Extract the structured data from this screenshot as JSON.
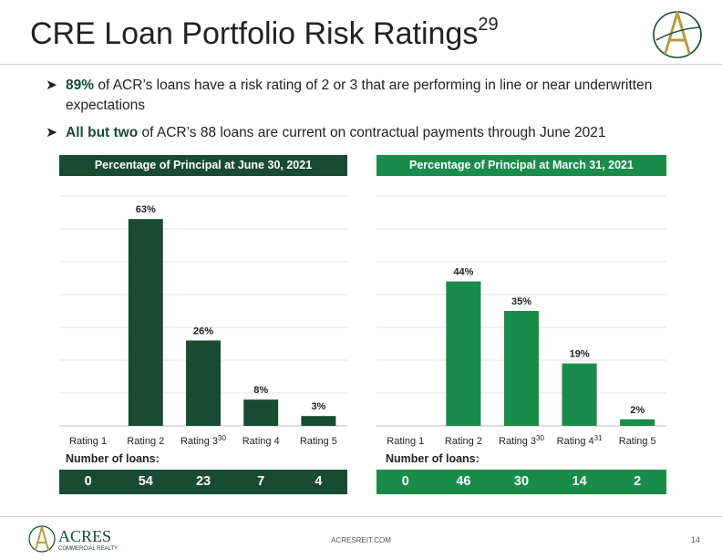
{
  "title": "CRE Loan Portfolio Risk Ratings",
  "title_sup": "29",
  "bullets": [
    {
      "highlight": "89%",
      "text": " of ACR’s loans have a risk rating of 2 or 3 that are performing in line or near underwritten expectations"
    },
    {
      "highlight": "All but two",
      "text": " of ACR’s 88 loans are current on contractual payments through June 2021"
    }
  ],
  "chart_data": [
    {
      "type": "bar",
      "title": "Percentage of Principal at June 30, 2021",
      "categories": [
        "Rating 1",
        "Rating 2",
        "Rating 3",
        "Rating 4",
        "Rating 5"
      ],
      "category_sups": [
        "",
        "",
        "30",
        "",
        ""
      ],
      "values": [
        0,
        63,
        26,
        8,
        3
      ],
      "labels": [
        "",
        "63%",
        "26%",
        "8%",
        "3%"
      ],
      "ylim": [
        0,
        70
      ],
      "grid": true,
      "color": "#184a34",
      "loans_label": "Number of loans:",
      "loans": [
        "0",
        "54",
        "23",
        "7",
        "4"
      ]
    },
    {
      "type": "bar",
      "title": "Percentage of Principal at March 31, 2021",
      "categories": [
        "Rating 1",
        "Rating 2",
        "Rating 3",
        "Rating 4",
        "Rating 5"
      ],
      "category_sups": [
        "",
        "",
        "30",
        "31",
        ""
      ],
      "values": [
        0,
        44,
        35,
        19,
        2
      ],
      "labels": [
        "",
        "44%",
        "35%",
        "19%",
        "2%"
      ],
      "ylim": [
        0,
        70
      ],
      "grid": true,
      "color": "#1a8c4a",
      "loans_label": "Number of loans:",
      "loans": [
        "0",
        "46",
        "30",
        "14",
        "2"
      ]
    }
  ],
  "footer": {
    "logo_text": "ACRES",
    "logo_sub": "COMMERCIAL REALTY",
    "url": "ACRESREIT.COM",
    "page": "14"
  },
  "colors": {
    "dark_green": "#184a34",
    "green": "#1a8c4a",
    "logo_gold": "#b99a3e"
  }
}
